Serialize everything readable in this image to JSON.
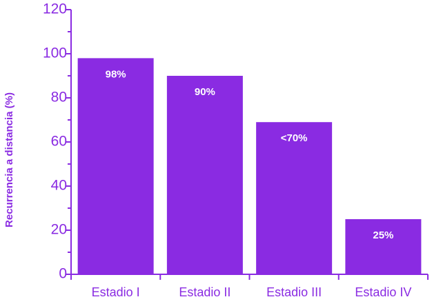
{
  "chart_data": {
    "type": "bar",
    "ylabel": "Recurrencia a distancia (%)",
    "categories": [
      "Estadio I",
      "Estadio II",
      "Estadio III",
      "Estadio IV"
    ],
    "values": [
      98,
      90,
      69,
      25
    ],
    "value_labels": [
      "98%",
      "90%",
      "<70%",
      "25%"
    ],
    "color": "#8a2be2",
    "ylim": [
      0,
      120
    ],
    "yticks": [
      0,
      20,
      40,
      60,
      80,
      100,
      120
    ],
    "yminor_ticks": [
      10,
      30,
      50,
      70,
      90,
      110
    ]
  }
}
